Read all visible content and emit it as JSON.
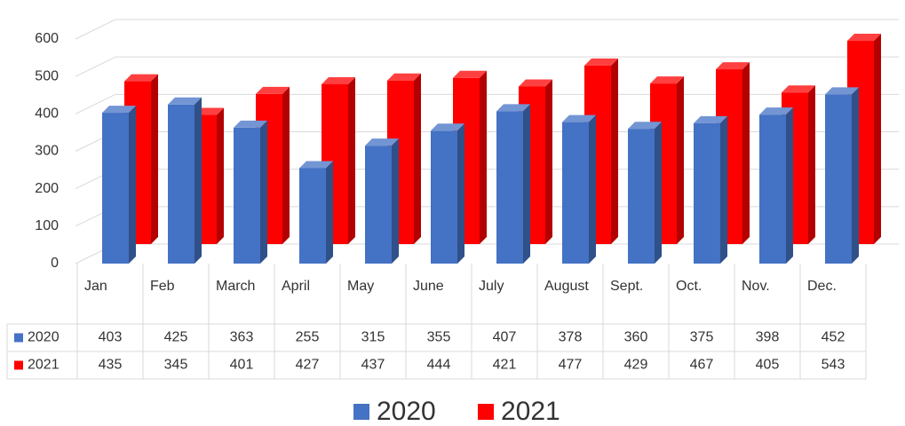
{
  "chart_data": {
    "type": "bar3d",
    "categories": [
      "Jan",
      "Feb",
      "March",
      "April",
      "May",
      "June",
      "July",
      "August",
      "Sept.",
      "Oct.",
      "Nov.",
      "Dec."
    ],
    "series": [
      {
        "name": "2020",
        "color": "#4472c4",
        "values": [
          403,
          425,
          363,
          255,
          315,
          355,
          407,
          378,
          360,
          375,
          398,
          452
        ]
      },
      {
        "name": "2021",
        "color": "#ff0000",
        "values": [
          435,
          345,
          401,
          427,
          437,
          444,
          421,
          477,
          429,
          467,
          405,
          543
        ]
      }
    ],
    "ylim": [
      0,
      600
    ],
    "yticks": [
      0,
      100,
      200,
      300,
      400,
      500,
      600
    ],
    "grid": true,
    "legend": "bottom",
    "data_table": true
  }
}
